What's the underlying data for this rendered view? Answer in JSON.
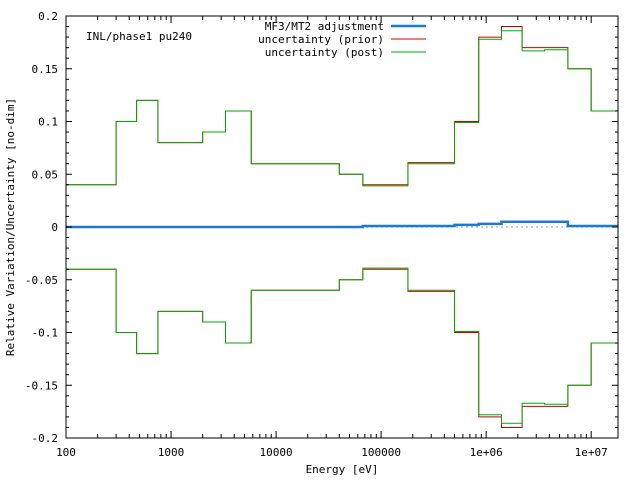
{
  "chart_data": {
    "type": "line",
    "step": true,
    "annotation": "INL/phase1 pu240",
    "xlabel": "Energy [eV]",
    "ylabel": "Relative Variation/Uncertainty [no-dim]",
    "x_scale": "log",
    "xlim": [
      100,
      18000000
    ],
    "ylim": [
      -0.2,
      0.2
    ],
    "x_ticks": [
      {
        "value": 100,
        "label": "100"
      },
      {
        "value": 1000,
        "label": "1000"
      },
      {
        "value": 10000,
        "label": "10000"
      },
      {
        "value": 100000,
        "label": "100000"
      },
      {
        "value": 1000000,
        "label": "1e+06"
      },
      {
        "value": 10000000,
        "label": "1e+07"
      }
    ],
    "y_ticks": [
      {
        "value": 0.2,
        "label": "0.2"
      },
      {
        "value": 0.15,
        "label": "0.15"
      },
      {
        "value": 0.1,
        "label": "0.1"
      },
      {
        "value": 0.05,
        "label": "0.05"
      },
      {
        "value": 0,
        "label": "0"
      },
      {
        "value": -0.05,
        "label": "-0.05"
      },
      {
        "value": -0.1,
        "label": "-0.1"
      },
      {
        "value": -0.15,
        "label": "-0.15"
      },
      {
        "value": -0.2,
        "label": "-0.2"
      }
    ],
    "legend_position": "top-right",
    "grid": false,
    "zero_line": true,
    "bin_edges": [
      100,
      300,
      470,
      750,
      2000,
      3300,
      5800,
      40000,
      67000,
      180000,
      500000,
      850000,
      1400000,
      2200000,
      3600000,
      6000000,
      10000000,
      18000000
    ],
    "series": [
      {
        "name": "MF3/MT2 adjustment",
        "color": "#1e78d2",
        "values": [
          0,
          0,
          0,
          0,
          0,
          0,
          0,
          0,
          0.001,
          0.001,
          0.002,
          0.003,
          0.005,
          0.005,
          0.005,
          0.001,
          0.001
        ]
      },
      {
        "name": "uncertainty (prior)",
        "color": "#cc0000",
        "values": [
          0.04,
          0.1,
          0.12,
          0.08,
          0.09,
          0.11,
          0.06,
          0.05,
          0.04,
          0.061,
          0.1,
          0.18,
          0.19,
          0.17,
          0.17,
          0.15,
          0.11
        ]
      },
      {
        "name": "uncertainty (post)",
        "color": "#00aa00",
        "values": [
          0.04,
          0.1,
          0.12,
          0.08,
          0.09,
          0.11,
          0.06,
          0.05,
          0.039,
          0.06,
          0.099,
          0.178,
          0.186,
          0.167,
          0.168,
          0.15,
          0.11
        ]
      }
    ]
  }
}
